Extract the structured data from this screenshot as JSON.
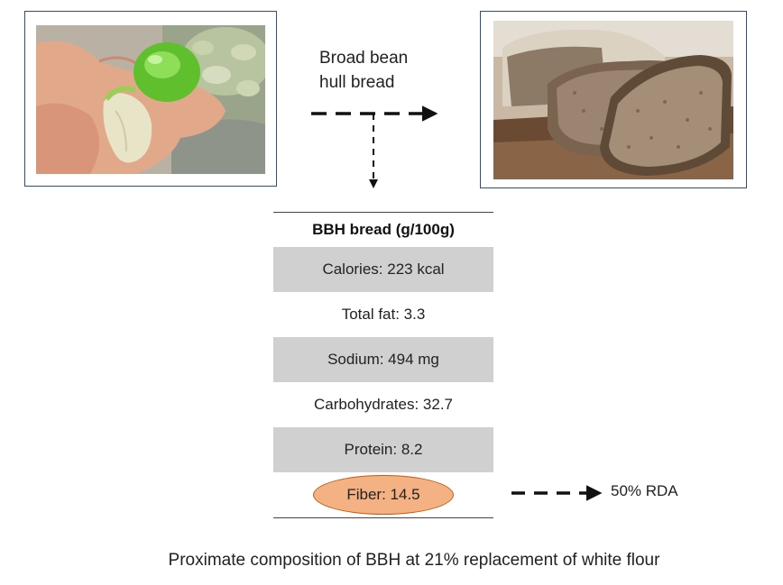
{
  "diagram": {
    "label_line1": "Broad bean",
    "label_line2": "hull bread",
    "table_header": "BBH bread (g/100g)",
    "rows": [
      {
        "text": "Calories: 223 kcal",
        "shaded": true
      },
      {
        "text": "Total fat: 3.3",
        "shaded": false
      },
      {
        "text": "Sodium: 494 mg",
        "shaded": true
      },
      {
        "text": "Carbohydrates: 32.7",
        "shaded": false
      },
      {
        "text": "Protein: 8.2",
        "shaded": true
      },
      {
        "text": "Fiber: 14.5",
        "shaded": false,
        "highlighted": true
      }
    ],
    "rda_label": "50% RDA",
    "caption": "Proximate composition of BBH at 21% replacement of white flour"
  },
  "colors": {
    "frame_border": "#2f4e7a",
    "shaded_row": "#d0d0d0",
    "fiber_highlight": "#f4b183",
    "fiber_border": "#c55a11",
    "arrow": "#111111"
  },
  "images": {
    "left": "broad-bean-pods-in-hand",
    "right": "sliced-bread-loaf"
  }
}
